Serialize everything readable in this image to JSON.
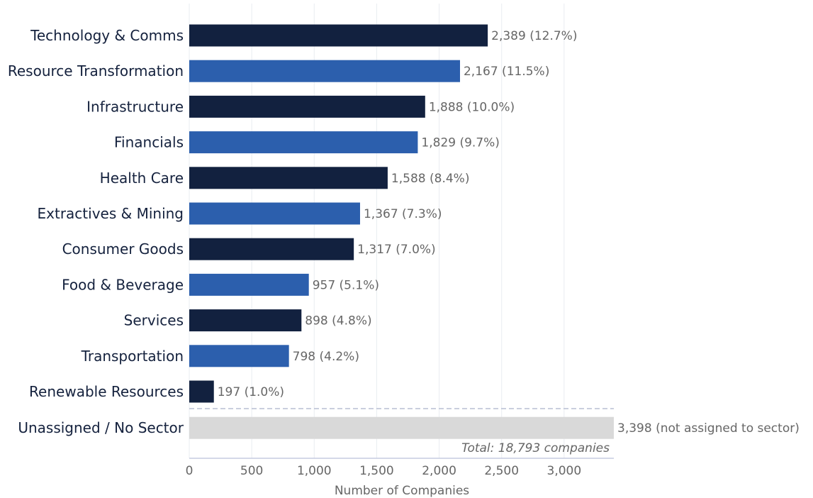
{
  "chart_data": {
    "type": "bar",
    "orientation": "horizontal",
    "categories": [
      "Technology & Comms",
      "Resource Transformation",
      "Infrastructure",
      "Financials",
      "Health Care",
      "Extractives & Mining",
      "Consumer Goods",
      "Food & Beverage",
      "Services",
      "Transportation",
      "Renewable Resources",
      "Unassigned / No Sector"
    ],
    "values": [
      2389,
      2167,
      1888,
      1829,
      1588,
      1367,
      1317,
      957,
      898,
      798,
      197,
      3398
    ],
    "value_labels": [
      "2,389  (12.7%)",
      "2,167  (11.5%)",
      "1,888  (10.0%)",
      "1,829  (9.7%)",
      "1,588  (8.4%)",
      "1,367  (7.3%)",
      "1,317  (7.0%)",
      "957  (5.1%)",
      "898  (4.8%)",
      "798  (4.2%)",
      "197  (1.0%)",
      "3,398  (not assigned to sector)"
    ],
    "colors": [
      "#12213f",
      "#2c5fad",
      "#12213f",
      "#2c5fad",
      "#12213f",
      "#2c5fad",
      "#12213f",
      "#2c5fad",
      "#12213f",
      "#2c5fad",
      "#12213f",
      "#d9d9d9"
    ],
    "separator_before_last": true,
    "xlabel": "Number of Companies",
    "ylabel": "",
    "title": "",
    "xlim": [
      0,
      3398
    ],
    "xticks": [
      0,
      500,
      1000,
      1500,
      2000,
      2500,
      3000
    ],
    "xtick_labels": [
      "0",
      "500",
      "1,000",
      "1,500",
      "2,000",
      "2,500",
      "3,000"
    ],
    "annotation": "Total: 18,793 companies",
    "grid": "vertical",
    "legend": "none"
  }
}
